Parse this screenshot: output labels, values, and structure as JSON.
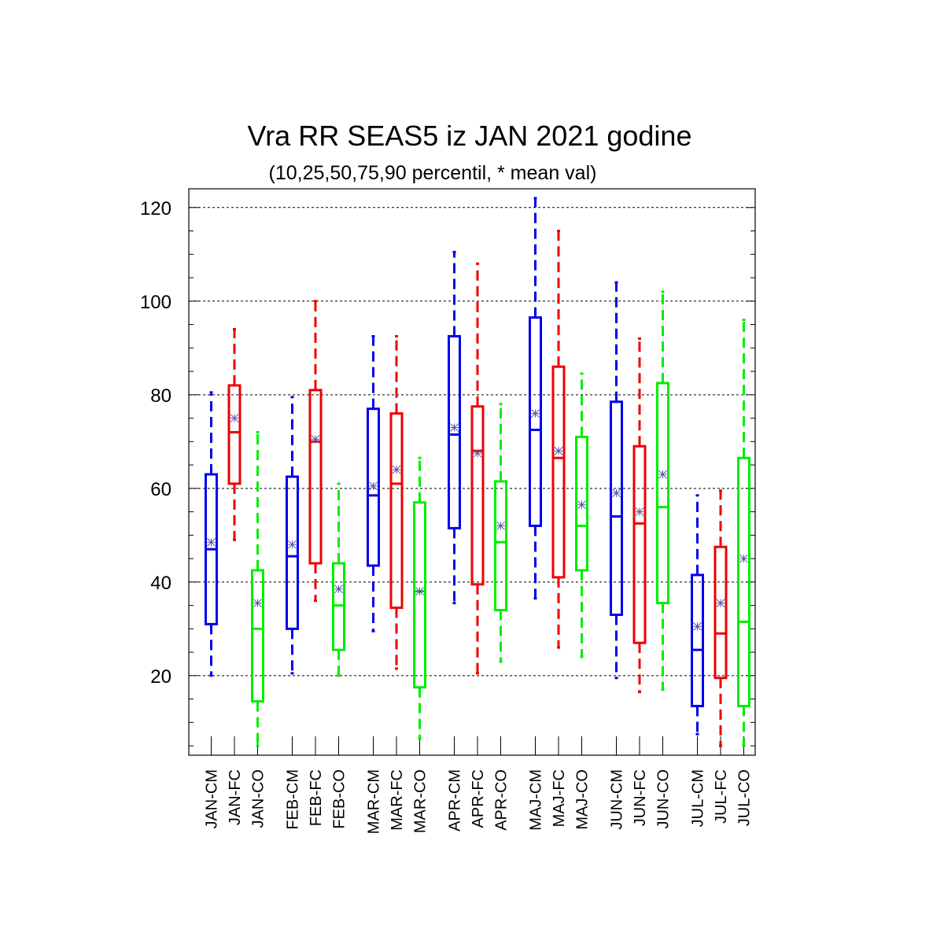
{
  "chart_data": {
    "type": "boxplot",
    "title": "Vra RR SEAS5 iz JAN 2021 godine",
    "subtitle": "(10,25,50,75,90 percentil, * mean val)",
    "ylim": [
      3,
      124
    ],
    "yticks": [
      20,
      40,
      60,
      80,
      100,
      120
    ],
    "grid": "horizontal dashed at major ticks",
    "colors": {
      "CM": "#0000ee",
      "FC": "#ee0000",
      "CO": "#00ee00",
      "mean_marker": "#5555aa"
    },
    "categories": [
      "JAN-CM",
      "JAN-FC",
      "JAN-CO",
      "FEB-CM",
      "FEB-FC",
      "FEB-CO",
      "MAR-CM",
      "MAR-FC",
      "MAR-CO",
      "APR-CM",
      "APR-FC",
      "APR-CO",
      "MAJ-CM",
      "MAJ-FC",
      "MAJ-CO",
      "JUN-CM",
      "JUN-FC",
      "JUN-CO",
      "JUL-CM",
      "JUL-FC",
      "JUL-CO"
    ],
    "boxes": [
      {
        "label": "JAN-CM",
        "type": "CM",
        "p10": 20,
        "p25": 31,
        "p50": 47,
        "p75": 63,
        "p90": 80.5,
        "mean": 48.5
      },
      {
        "label": "JAN-FC",
        "type": "FC",
        "p10": 49,
        "p25": 61,
        "p50": 72,
        "p75": 82,
        "p90": 94,
        "mean": 75
      },
      {
        "label": "JAN-CO",
        "type": "CO",
        "p10": 5,
        "p25": 14.5,
        "p50": 30,
        "p75": 42.5,
        "p90": 72,
        "mean": 35.5
      },
      {
        "label": "FEB-CM",
        "type": "CM",
        "p10": 20.5,
        "p25": 30,
        "p50": 45.5,
        "p75": 62.5,
        "p90": 79.5,
        "mean": 48
      },
      {
        "label": "FEB-FC",
        "type": "FC",
        "p10": 36,
        "p25": 44,
        "p50": 70,
        "p75": 81,
        "p90": 100,
        "mean": 70.5
      },
      {
        "label": "FEB-CO",
        "type": "CO",
        "p10": 20,
        "p25": 25.5,
        "p50": 35,
        "p75": 44,
        "p90": 61,
        "mean": 38.5
      },
      {
        "label": "MAR-CM",
        "type": "CM",
        "p10": 29.5,
        "p25": 43.5,
        "p50": 58.5,
        "p75": 77,
        "p90": 92.5,
        "mean": 60.5
      },
      {
        "label": "MAR-FC",
        "type": "FC",
        "p10": 21.5,
        "p25": 34.5,
        "p50": 61,
        "p75": 76,
        "p90": 92.5,
        "mean": 64
      },
      {
        "label": "MAR-CO",
        "type": "CO",
        "p10": 6.5,
        "p25": 17.5,
        "p50": 38,
        "p75": 57,
        "p90": 66.5,
        "mean": 38
      },
      {
        "label": "APR-CM",
        "type": "CM",
        "p10": 35.5,
        "p25": 51.5,
        "p50": 71.5,
        "p75": 92.5,
        "p90": 110.5,
        "mean": 73
      },
      {
        "label": "APR-FC",
        "type": "FC",
        "p10": 20.5,
        "p25": 39.5,
        "p50": 68,
        "p75": 77.5,
        "p90": 108,
        "mean": 67.5
      },
      {
        "label": "APR-CO",
        "type": "CO",
        "p10": 23,
        "p25": 34,
        "p50": 48.5,
        "p75": 61.5,
        "p90": 78,
        "mean": 52
      },
      {
        "label": "MAJ-CM",
        "type": "CM",
        "p10": 36.5,
        "p25": 52,
        "p50": 72.5,
        "p75": 96.5,
        "p90": 122,
        "mean": 76
      },
      {
        "label": "MAJ-FC",
        "type": "FC",
        "p10": 26,
        "p25": 41,
        "p50": 66.5,
        "p75": 86,
        "p90": 115,
        "mean": 68
      },
      {
        "label": "MAJ-CO",
        "type": "CO",
        "p10": 24,
        "p25": 42.5,
        "p50": 52,
        "p75": 71,
        "p90": 84.5,
        "mean": 56.5
      },
      {
        "label": "JUN-CM",
        "type": "CM",
        "p10": 19.5,
        "p25": 33,
        "p50": 54,
        "p75": 78.5,
        "p90": 104,
        "mean": 59
      },
      {
        "label": "JUN-FC",
        "type": "FC",
        "p10": 16.5,
        "p25": 27,
        "p50": 52.5,
        "p75": 69,
        "p90": 92,
        "mean": 55
      },
      {
        "label": "JUN-CO",
        "type": "CO",
        "p10": 17,
        "p25": 35.5,
        "p50": 56,
        "p75": 82.5,
        "p90": 102,
        "mean": 63
      },
      {
        "label": "JUL-CM",
        "type": "CM",
        "p10": 7.5,
        "p25": 13.5,
        "p50": 25.5,
        "p75": 41.5,
        "p90": 58.5,
        "mean": 30.5
      },
      {
        "label": "JUL-FC",
        "type": "FC",
        "p10": 5,
        "p25": 19.5,
        "p50": 29,
        "p75": 47.5,
        "p90": 59.5,
        "mean": 35.5
      },
      {
        "label": "JUL-CO",
        "type": "CO",
        "p10": 5,
        "p25": 13.5,
        "p50": 31.5,
        "p75": 66.5,
        "p90": 96,
        "mean": 45
      }
    ]
  }
}
